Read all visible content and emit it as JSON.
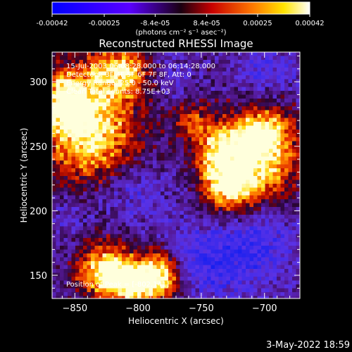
{
  "colorbar": {
    "tick_labels": [
      "-0.00042",
      "-0.00025",
      "-8.4e-05",
      "8.4e-05",
      "0.00025",
      "0.00042"
    ],
    "tick_values": [
      -0.00042,
      -0.00025,
      -8.4e-05,
      8.4e-05,
      0.00025,
      0.00042
    ],
    "range": [
      -0.00042,
      0.00042
    ],
    "units_label": "(photons cm⁻² s⁻¹ asec⁻²)"
  },
  "chart_data": {
    "type": "heatmap",
    "title": "Reconstructed RHESSI Image",
    "xlabel": "Heliocentric X (arcsec)",
    "ylabel": "Heliocentric Y (arcsec)",
    "xlim": [
      -868,
      -672
    ],
    "ylim": [
      132,
      323
    ],
    "x_ticks": [
      -850,
      -800,
      -750,
      -700
    ],
    "y_ticks": [
      150,
      200,
      250,
      300
    ],
    "x_tick_labels": [
      "−850",
      "−800",
      "−750",
      "−700"
    ],
    "y_tick_labels": [
      "150",
      "200",
      "250",
      "300"
    ],
    "info_lines": [
      "15-Jul-2003 06:08:28.000 to 06:14:28.000",
      "Detectors: 3F 4F 5F 6F 7F 8F, Att: 0",
      "Energy Range: 25.0 - 50.0 keV",
      "Clean     Total counts: 8.75E+03"
    ],
    "peak_label": "Position of Peak = [-802,141]",
    "bright_regions": [
      {
        "x": -838,
        "y": 263,
        "level": 0.95,
        "sx": 26,
        "sy": 32
      },
      {
        "x": -812,
        "y": 308,
        "level": 0.75,
        "sx": 18,
        "sy": 14
      },
      {
        "x": -858,
        "y": 285,
        "level": 0.7,
        "sx": 12,
        "sy": 16
      },
      {
        "x": -802,
        "y": 143,
        "level": 1.0,
        "sx": 22,
        "sy": 12
      },
      {
        "x": -826,
        "y": 158,
        "level": 0.75,
        "sx": 16,
        "sy": 14
      },
      {
        "x": -783,
        "y": 155,
        "level": 0.65,
        "sx": 12,
        "sy": 12
      },
      {
        "x": -705,
        "y": 235,
        "level": 0.95,
        "sx": 22,
        "sy": 22
      },
      {
        "x": -737,
        "y": 245,
        "level": 0.7,
        "sx": 13,
        "sy": 20
      },
      {
        "x": -700,
        "y": 262,
        "level": 0.7,
        "sx": 15,
        "sy": 13
      },
      {
        "x": -728,
        "y": 215,
        "level": 0.6,
        "sx": 14,
        "sy": 12
      },
      {
        "x": -760,
        "y": 270,
        "level": 0.45,
        "sx": 10,
        "sy": 10
      }
    ],
    "dark_regions": [
      {
        "x": -745,
        "y": 160,
        "level": 0.95,
        "sx": 25,
        "sy": 22
      },
      {
        "x": -700,
        "y": 180,
        "level": 0.7,
        "sx": 18,
        "sy": 25
      },
      {
        "x": -810,
        "y": 215,
        "level": 0.65,
        "sx": 22,
        "sy": 15
      },
      {
        "x": -700,
        "y": 310,
        "level": 0.55,
        "sx": 18,
        "sy": 12
      },
      {
        "x": -780,
        "y": 305,
        "level": 0.5,
        "sx": 15,
        "sy": 15
      },
      {
        "x": -855,
        "y": 195,
        "level": 0.4,
        "sx": 12,
        "sy": 15
      }
    ]
  },
  "footer": {
    "date": "3-May-2022 18:59"
  }
}
